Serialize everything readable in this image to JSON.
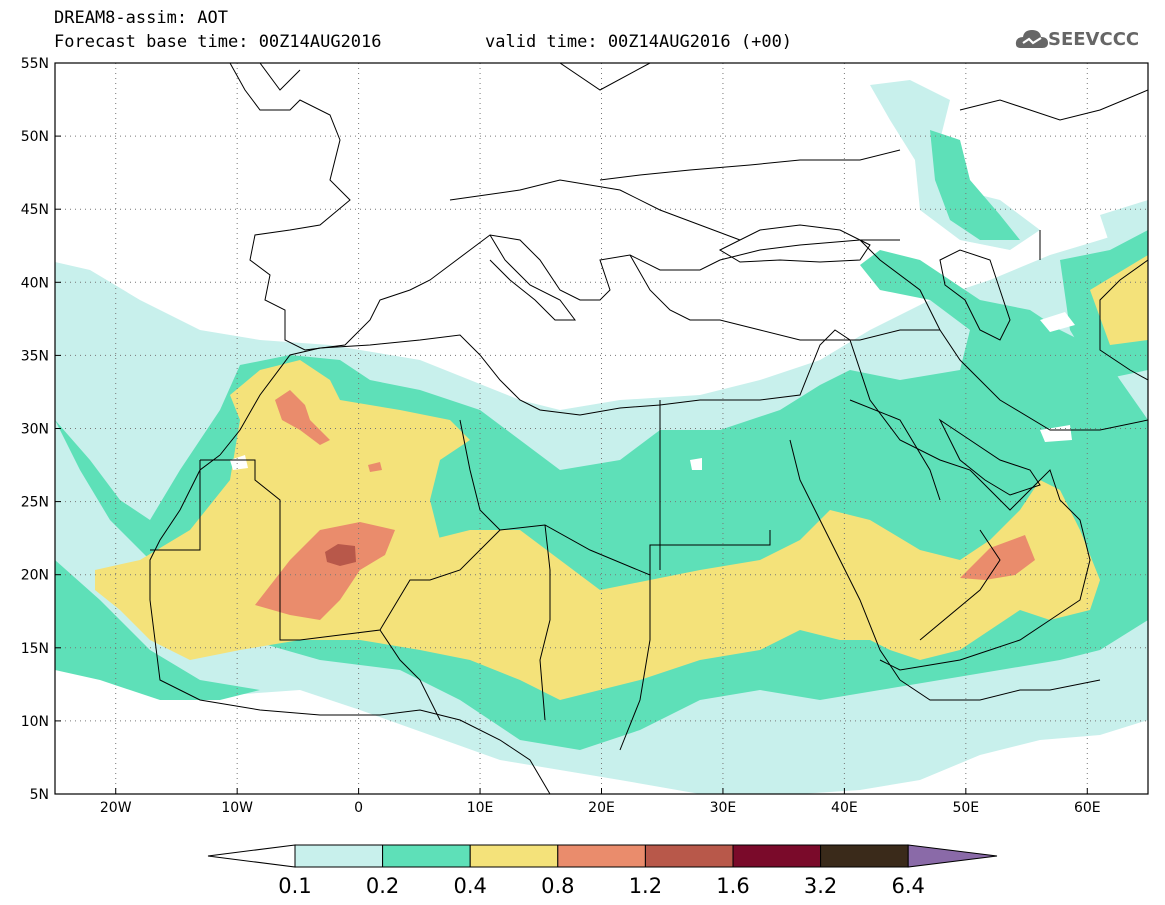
{
  "title": {
    "line1": "DREAM8-assim: AOT",
    "line2": "Forecast base time: 00Z14AUG2016",
    "valid": "valid time: 00Z14AUG2016 (+00)"
  },
  "logo": {
    "text": "SEEVCCC",
    "icon": "cloud-icon"
  },
  "map": {
    "lon_labels": [
      "20W",
      "10W",
      "0",
      "10E",
      "20E",
      "30E",
      "40E",
      "50E",
      "60E"
    ],
    "lat_labels": [
      "55N",
      "50N",
      "45N",
      "40N",
      "35N",
      "30N",
      "25N",
      "20N",
      "15N",
      "10N",
      "5N"
    ],
    "lon_range": [
      -25,
      65
    ],
    "lat_range": [
      5,
      55
    ],
    "field": "AOT",
    "colors": {
      "c01": "#c8f0ec",
      "c02": "#5ee0b8",
      "c04": "#f4e27a",
      "c08": "#ea8c6c",
      "c12": "#b8584a",
      "c16": "#7a0a2a",
      "c32": "#3a2a1a",
      "c64": "#8a6aa8"
    }
  },
  "colorbar": {
    "labels": [
      "0.1",
      "0.2",
      "0.4",
      "0.8",
      "1.2",
      "1.6",
      "3.2",
      "6.4"
    ],
    "colors": [
      "#c8f0ec",
      "#5ee0b8",
      "#f4e27a",
      "#ea8c6c",
      "#b8584a",
      "#7a0a2a",
      "#3a2a1a"
    ],
    "overflow_color": "#8a6aa8"
  }
}
